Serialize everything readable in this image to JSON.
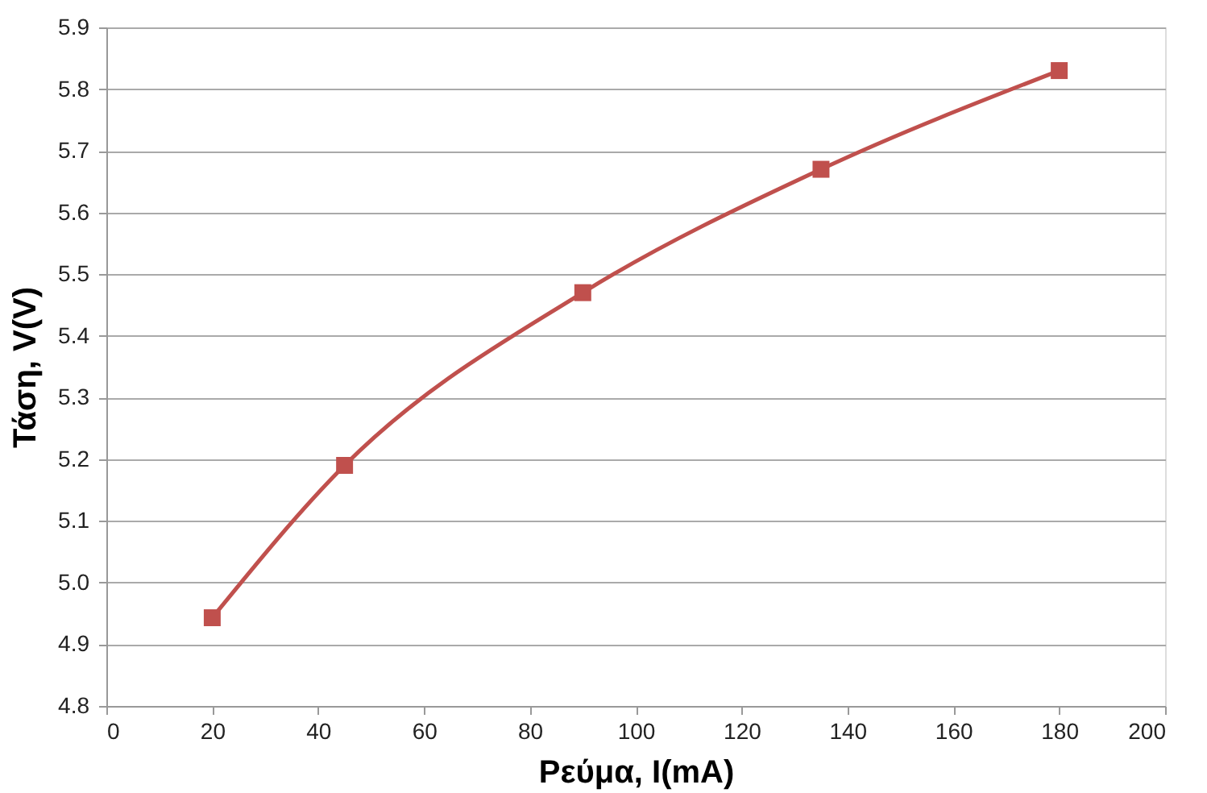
{
  "chart_data": {
    "type": "line",
    "xlabel": "Ρεύμα, I(mA)",
    "ylabel": "Τάση, V(V)",
    "x": [
      20,
      45,
      90,
      135,
      180
    ],
    "series": [
      {
        "color": "#c0504d",
        "values": [
          4.943,
          5.19,
          5.47,
          5.67,
          5.83
        ]
      }
    ],
    "xlim": [
      0,
      200
    ],
    "xticks": [
      0,
      20,
      40,
      60,
      80,
      100,
      120,
      140,
      160,
      180,
      200
    ],
    "ylim": [
      4.8,
      5.9
    ],
    "yticks": [
      4.8,
      4.9,
      {
        "value": 5,
        "label": "5.0"
      },
      5.1,
      5.2,
      5.3,
      5.4,
      5.5,
      5.6,
      5.7,
      5.8,
      5.9
    ],
    "grid": "y",
    "marker": "square",
    "line_style": "solid"
  }
}
